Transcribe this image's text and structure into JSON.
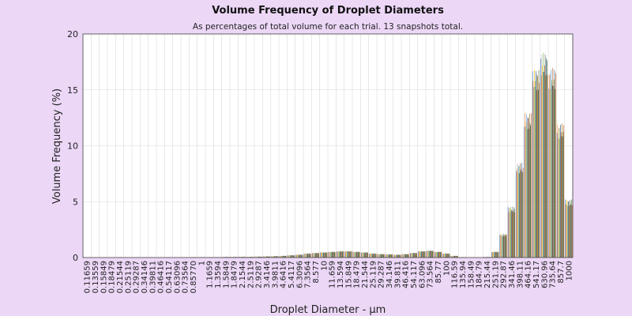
{
  "colors": {
    "background": "#ecd7f7",
    "plot_background": "#ffffff",
    "grid": "#d9d9d9",
    "axis": "#444444",
    "series": [
      "#4472c4",
      "#ed7d31",
      "#a5a5a5",
      "#ffc000",
      "#5b9bd5",
      "#70ad47",
      "#264478",
      "#9e480e",
      "#636363",
      "#997300",
      "#255e91",
      "#43682b",
      "#c55a11"
    ]
  },
  "chart_data": {
    "type": "bar",
    "title": "Volume Frequency of Droplet Diameters",
    "subtitle": "As percentages of total volume for each trial. 13 snapshots total.",
    "xlabel": "Droplet Diameter - μm",
    "ylabel": "Volume Frequency (%)",
    "ylim": [
      0,
      20
    ],
    "yticks": [
      0,
      5,
      10,
      15,
      20
    ],
    "grid": true,
    "categories": [
      "0.11659",
      "0.13559",
      "0.15849",
      "0.18479",
      "0.21544",
      "0.25119",
      "0.29287",
      "0.34146",
      "0.39811",
      "0.46416",
      "0.54117",
      "0.63096",
      "0.73564",
      "0.85770",
      "1",
      "1.1659",
      "1.3594",
      "1.5849",
      "1.8479",
      "2.1544",
      "2.5119",
      "2.9287",
      "3.4146",
      "3.9811",
      "4.6416",
      "5.4117",
      "6.3096",
      "7.3564",
      "8.577",
      "10",
      "11.659",
      "13.594",
      "15.849",
      "18.479",
      "21.544",
      "25.119",
      "29.287",
      "34.146",
      "39.811",
      "46.416",
      "54.117",
      "63.096",
      "73.564",
      "85.77",
      "100",
      "116.59",
      "135.94",
      "158.49",
      "184.79",
      "215.44",
      "251.19",
      "292.87",
      "341.46",
      "398.11",
      "464.16",
      "541.17",
      "630.96",
      "735.64",
      "857.7",
      "1000"
    ],
    "tick_labels": [
      "0.11659",
      "0.13559",
      "0.15849",
      "0.18479",
      "0.21544",
      "0.25119",
      "0.29287",
      "0.34146",
      "0.39811",
      "0.46416",
      "0.54117",
      "0.63096",
      "0.73564",
      "0.85770",
      "1",
      "1.1659",
      "1.3594",
      "1.5849",
      "1.8479",
      "2.1544",
      "2.5119",
      "2.9287",
      "3.4146",
      "3.9811",
      "4.6416",
      "5.4117",
      "6.3096",
      "7.3564",
      "8.577",
      "10",
      "11.659",
      "13.594",
      "15.849",
      "18.479",
      "21.544",
      "25.119",
      "29.287",
      "34.146",
      "39.811",
      "46.416",
      "54.117",
      "63.096",
      "73.564",
      "85.77",
      "100",
      "116.59",
      "135.94",
      "158.49",
      "184.79",
      "215.44",
      "251.19",
      "292.87",
      "341.46",
      "398.11",
      "464.16",
      "541.17",
      "630.96",
      "735.64",
      "857.7",
      "1000"
    ],
    "base_values": [
      0,
      0,
      0,
      0,
      0,
      0,
      0,
      0,
      0,
      0,
      0,
      0,
      0,
      0.03,
      0.03,
      0.03,
      0.03,
      0.05,
      0.05,
      0.06,
      0.06,
      0.08,
      0.1,
      0.12,
      0.15,
      0.2,
      0.25,
      0.35,
      0.4,
      0.45,
      0.5,
      0.55,
      0.55,
      0.5,
      0.45,
      0.35,
      0.3,
      0.28,
      0.25,
      0.3,
      0.4,
      0.55,
      0.6,
      0.5,
      0.35,
      0.15,
      0.03,
      0,
      0,
      0.05,
      0.5,
      2.0,
      4.3,
      8.0,
      12.2,
      15.9,
      17.3,
      16.0,
      11.3,
      4.9
    ],
    "series_count": 13
  }
}
